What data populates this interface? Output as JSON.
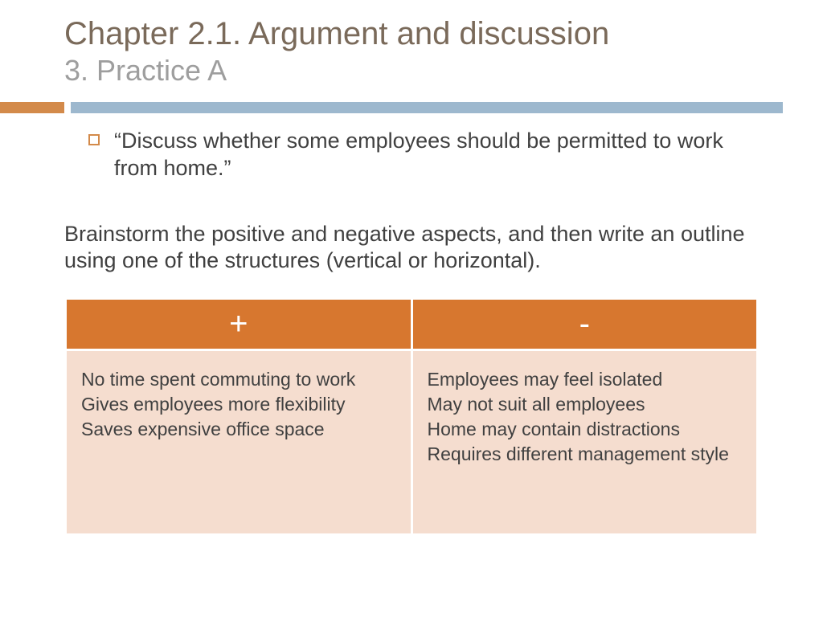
{
  "title": {
    "main": "Chapter 2.1. Argument and discussion",
    "sub": "3. Practice A"
  },
  "divider": {
    "left_color": "#d38a4a",
    "right_color": "#9db8ce"
  },
  "prompt": "“Discuss whether some employees should be permitted to work from home.”",
  "instruction": "Brainstorm the positive and negative aspects, and then write an outline using one of the structures (vertical or horizontal).",
  "table": {
    "header_bg": "#d7772f",
    "header_fg": "#ffffff",
    "cell_bg": "#f5ddcf",
    "columns": [
      "+",
      "-"
    ],
    "positives": [
      "No time spent commuting to work",
      "Gives employees more flexibility",
      "Saves expensive office space"
    ],
    "negatives": [
      "Employees may feel isolated",
      "May not suit all employees",
      "Home may contain distractions",
      "Requires different management style"
    ]
  }
}
